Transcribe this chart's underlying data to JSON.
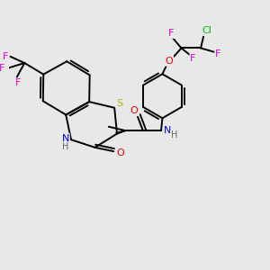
{
  "bg_color": "#e8e8e8",
  "bond_color": "#000000",
  "atom_colors": {
    "S": "#b8b800",
    "N": "#0000ee",
    "O": "#ee0000",
    "F": "#dd00dd",
    "Cl": "#00bb00",
    "H": "#666666",
    "C": "#000000"
  },
  "bond_width": 1.4,
  "figsize": [
    3.0,
    3.0
  ],
  "dpi": 100,
  "scale": 1.0
}
